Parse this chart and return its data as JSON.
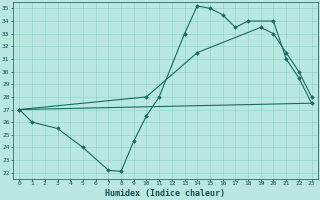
{
  "xlabel": "Humidex (Indice chaleur)",
  "background_color": "#b8e8e0",
  "line_color": "#1a6b5e",
  "xlim": [
    -0.5,
    23.5
  ],
  "ylim": [
    21.5,
    35.5
  ],
  "yticks": [
    22,
    23,
    24,
    25,
    26,
    27,
    28,
    29,
    30,
    31,
    32,
    33,
    34,
    35
  ],
  "xtick_labels": [
    "0",
    "1",
    "2",
    "3",
    "4",
    "5",
    "6",
    "7",
    "8",
    "9",
    "10",
    "11",
    "12",
    "13",
    "14",
    "15",
    "16",
    "17",
    "18",
    "19",
    "20",
    "21",
    "22",
    "23"
  ],
  "xtick_positions": [
    0,
    1,
    2,
    3,
    4,
    5,
    6,
    7,
    8,
    9,
    10,
    11,
    12,
    13,
    14,
    15,
    16,
    17,
    18,
    19,
    20,
    21,
    22,
    23
  ],
  "line1_x": [
    0,
    23
  ],
  "line1_y": [
    27,
    27.5
  ],
  "line2_x": [
    0,
    1,
    3,
    5,
    7,
    8,
    9,
    10,
    11,
    13,
    14,
    15,
    16,
    17,
    18,
    20,
    21,
    22,
    23
  ],
  "line2_y": [
    27,
    26,
    25.5,
    24,
    22.2,
    22.1,
    24.5,
    26.5,
    28,
    33,
    35.2,
    35.0,
    34.5,
    33.5,
    34,
    34,
    31,
    29.5,
    27.5
  ],
  "line3_x": [
    0,
    10,
    14,
    19,
    20,
    21,
    22,
    23
  ],
  "line3_y": [
    27,
    28,
    31.5,
    33.5,
    33,
    31.5,
    30,
    28
  ],
  "marker": "D",
  "markersize": 1.8,
  "linewidth": 0.8,
  "grid_color": "#8ecfc4",
  "font_color": "#1a5050",
  "tick_fontsize": 4.5,
  "label_fontsize": 6.0
}
